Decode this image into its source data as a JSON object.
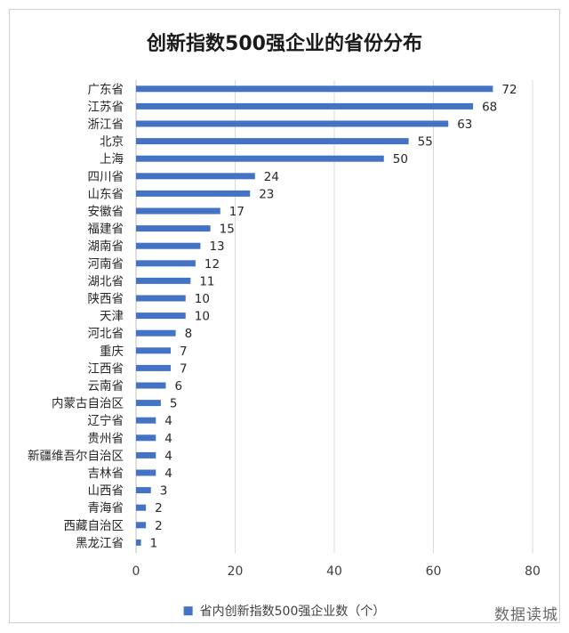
{
  "chart_data": {
    "type": "bar",
    "orientation": "horizontal",
    "title": "创新指数500强企业的省份分布",
    "categories": [
      "广东省",
      "江苏省",
      "浙江省",
      "北京",
      "上海",
      "四川省",
      "山东省",
      "安徽省",
      "福建省",
      "湖南省",
      "河南省",
      "湖北省",
      "陕西省",
      "天津",
      "河北省",
      "重庆",
      "江西省",
      "云南省",
      "内蒙古自治区",
      "辽宁省",
      "贵州省",
      "新疆维吾尔自治区",
      "吉林省",
      "山西省",
      "青海省",
      "西藏自治区",
      "黑龙江省"
    ],
    "series": [
      {
        "name": "省内创新指数500强企业数（个）",
        "values": [
          72,
          68,
          63,
          55,
          50,
          24,
          23,
          17,
          15,
          13,
          12,
          11,
          10,
          10,
          8,
          7,
          7,
          6,
          5,
          4,
          4,
          4,
          4,
          3,
          2,
          2,
          1
        ]
      }
    ],
    "xlim": [
      0,
      80
    ],
    "xticks": [
      "0",
      "20",
      "40",
      "60",
      "80"
    ],
    "grid": true,
    "legend_position": "bottom",
    "color": "#4472C4"
  },
  "watermark": "数据读城"
}
